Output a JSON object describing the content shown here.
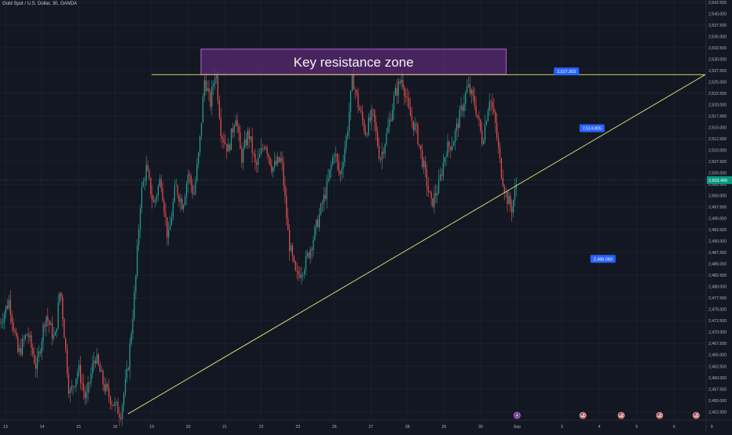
{
  "header": {
    "symbol_title": "Gold Spot / U.S. Dollar, 30, OANDA"
  },
  "colors": {
    "background": "#131722",
    "up_candle": "#26a69a",
    "down_candle": "#ef5350",
    "trendline": "#d4d86a",
    "zone_fill": "#5b2a74",
    "zone_border": "#b35fd6",
    "label_blue": "#2962ff",
    "price_green": "#089981",
    "axis_text": "#b2b5be"
  },
  "chart_data": {
    "type": "candlestick",
    "y_axis": {
      "range": [
        2451,
        2543
      ],
      "tick_step": 2.5,
      "tick_start": 2452.5,
      "tick_end": 2542.5,
      "side": "right"
    },
    "x_axis": {
      "range": [
        0,
        38.6
      ],
      "ticks": [
        {
          "label": "13",
          "x": 0.3
        },
        {
          "label": "14",
          "x": 2.3
        },
        {
          "label": "15",
          "x": 4.3
        },
        {
          "label": "16",
          "x": 6.3
        },
        {
          "label": "19",
          "x": 8.3
        },
        {
          "label": "20",
          "x": 10.3
        },
        {
          "label": "21",
          "x": 12.3
        },
        {
          "label": "22",
          "x": 14.3
        },
        {
          "label": "23",
          "x": 16.3
        },
        {
          "label": "26",
          "x": 18.3
        },
        {
          "label": "27",
          "x": 20.3
        },
        {
          "label": "28",
          "x": 22.3
        },
        {
          "label": "29",
          "x": 24.3
        },
        {
          "label": "30",
          "x": 26.3
        },
        {
          "label": "Sep",
          "x": 28.3
        },
        {
          "label": "3",
          "x": 30.75
        },
        {
          "label": "4",
          "x": 32.8
        },
        {
          "label": "5",
          "x": 34.85
        },
        {
          "label": "6",
          "x": 36.9
        },
        {
          "label": "9",
          "x": 38.95
        }
      ]
    },
    "price_path": [
      [
        0,
        2472
      ],
      [
        0.5,
        2477
      ],
      [
        1.0,
        2465
      ],
      [
        1.5,
        2470
      ],
      [
        2.0,
        2462
      ],
      [
        2.5,
        2474
      ],
      [
        3.0,
        2468
      ],
      [
        3.3,
        2480
      ],
      [
        3.8,
        2456
      ],
      [
        4.3,
        2462
      ],
      [
        4.7,
        2455
      ],
      [
        5.2,
        2465
      ],
      [
        5.7,
        2458
      ],
      [
        6.1,
        2455
      ],
      [
        6.6,
        2452
      ],
      [
        7.0,
        2462
      ],
      [
        7.4,
        2480
      ],
      [
        7.7,
        2500
      ],
      [
        8.0,
        2506
      ],
      [
        8.4,
        2498
      ],
      [
        8.8,
        2504
      ],
      [
        9.2,
        2490
      ],
      [
        9.6,
        2502
      ],
      [
        10.0,
        2498
      ],
      [
        10.3,
        2505
      ],
      [
        10.6,
        2500
      ],
      [
        10.9,
        2510
      ],
      [
        11.2,
        2526
      ],
      [
        11.5,
        2520
      ],
      [
        11.8,
        2528
      ],
      [
        12.1,
        2514
      ],
      [
        12.5,
        2510
      ],
      [
        12.9,
        2518
      ],
      [
        13.2,
        2508
      ],
      [
        13.6,
        2514
      ],
      [
        14.0,
        2506
      ],
      [
        14.5,
        2512
      ],
      [
        14.9,
        2506
      ],
      [
        15.4,
        2508
      ],
      [
        15.8,
        2490
      ],
      [
        16.2,
        2482
      ],
      [
        16.7,
        2485
      ],
      [
        17.1,
        2490
      ],
      [
        17.5,
        2496
      ],
      [
        17.9,
        2502
      ],
      [
        18.3,
        2510
      ],
      [
        18.6,
        2504
      ],
      [
        19.0,
        2514
      ],
      [
        19.3,
        2526
      ],
      [
        19.6,
        2520
      ],
      [
        20.0,
        2514
      ],
      [
        20.4,
        2518
      ],
      [
        20.8,
        2508
      ],
      [
        21.2,
        2514
      ],
      [
        21.6,
        2522
      ],
      [
        22.0,
        2526
      ],
      [
        22.4,
        2518
      ],
      [
        22.8,
        2514
      ],
      [
        23.2,
        2506
      ],
      [
        23.6,
        2498
      ],
      [
        24.0,
        2502
      ],
      [
        24.4,
        2510
      ],
      [
        24.8,
        2512
      ],
      [
        25.2,
        2518
      ],
      [
        25.6,
        2524
      ],
      [
        26.0,
        2520
      ],
      [
        26.4,
        2512
      ],
      [
        26.8,
        2522
      ],
      [
        27.1,
        2516
      ],
      [
        27.4,
        2506
      ],
      [
        27.7,
        2500
      ],
      [
        28.0,
        2497
      ],
      [
        28.3,
        2503.4
      ]
    ],
    "trendlines": [
      {
        "name": "resistance",
        "points": [
          [
            8.3,
            2526.6
          ],
          [
            38.6,
            2526.6
          ]
        ]
      },
      {
        "name": "rising-support",
        "points": [
          [
            7.0,
            2452
          ],
          [
            38.6,
            2526.6
          ]
        ]
      }
    ],
    "zones": [
      {
        "label": "Key resistance zone",
        "x_range": [
          11.0,
          27.7
        ],
        "y_range": [
          2526.6,
          2532.2
        ]
      }
    ],
    "price_labels": [
      {
        "text": "2,527.303",
        "x": 31.0,
        "y": 2527.3
      },
      {
        "text": "2,514.805",
        "x": 32.4,
        "y": 2514.8
      },
      {
        "text": "2,486.069",
        "x": 33.0,
        "y": 2486.1
      }
    ],
    "current_price": {
      "text": "2,503.400",
      "value": 2503.4
    },
    "event_markers": [
      {
        "kind": "lightning",
        "x": 28.3
      },
      {
        "kind": "flag",
        "x": 31.9
      },
      {
        "kind": "flag",
        "x": 34.0
      },
      {
        "kind": "flag",
        "x": 36.1
      },
      {
        "kind": "flag",
        "x": 38.1
      }
    ]
  }
}
